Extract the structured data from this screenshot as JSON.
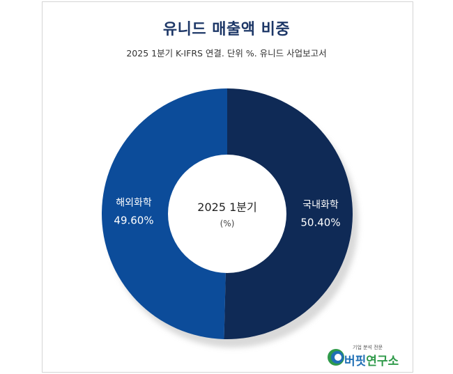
{
  "title": "유니드 매출액 비중",
  "subtitle": "2025 1분기 K-IFRS 연결. 단위 %. 유니드 사업보고서",
  "center_label": {
    "period": "2025 1분기",
    "unit": "(%)"
  },
  "colors": {
    "domestic": "#0f2a56",
    "overseas": "#0c4c9a",
    "title": "#1d3767"
  },
  "chart_data": {
    "type": "pie",
    "style": "donut",
    "title": "유니드 매출액 비중",
    "subtitle": "2025 1분기 K-IFRS 연결. 단위 %. 유니드 사업보고서",
    "categories": [
      "국내화학",
      "해외화학"
    ],
    "values": [
      50.4,
      49.6
    ],
    "value_labels": [
      "50.40%",
      "49.60%"
    ],
    "colors": [
      "#0f2a56",
      "#0c4c9a"
    ],
    "start": "12 o'clock",
    "direction": "clockwise"
  },
  "logo": {
    "tagline": "기업 분석 전문",
    "name": "버핏",
    "name_accent": "연구소"
  }
}
